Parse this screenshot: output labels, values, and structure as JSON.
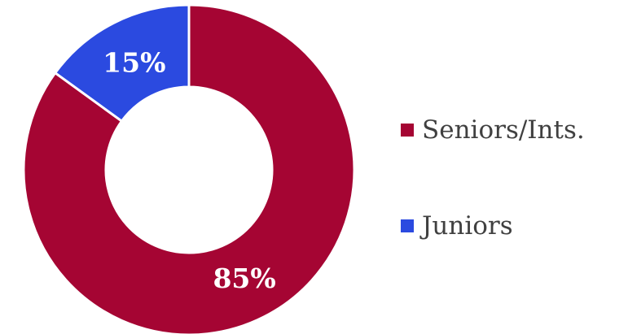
{
  "chart_data": {
    "type": "pie",
    "variant": "donut",
    "title": "",
    "categories": [
      "Seniors/Ints.",
      "Juniors"
    ],
    "values": [
      85,
      15
    ],
    "data_labels": [
      "85%",
      "15%"
    ],
    "colors": [
      "#a50533",
      "#2b4ae0"
    ],
    "legend": {
      "placement": "right"
    },
    "start": "12 o'clock, clockwise"
  }
}
